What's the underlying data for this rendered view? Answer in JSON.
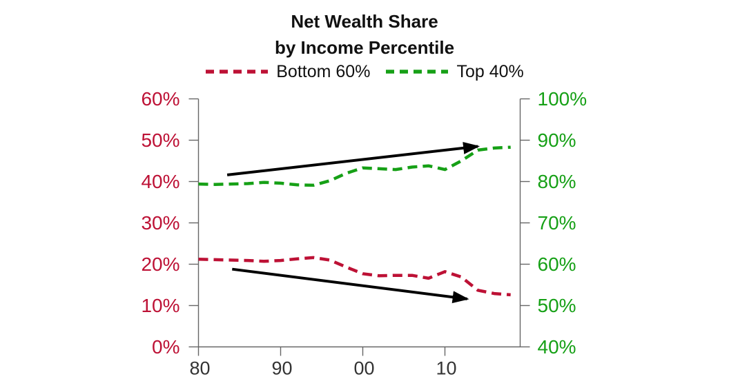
{
  "title": {
    "line1": "Net Wealth Share",
    "line2": "by Income Percentile"
  },
  "legend": {
    "items": [
      {
        "label": "Bottom 60%",
        "color": "#bd1135"
      },
      {
        "label": "Top 40%",
        "color": "#16a016"
      }
    ]
  },
  "chart_data": {
    "type": "line",
    "title": "Net Wealth Share by Income Percentile",
    "x_years": [
      1980,
      1982,
      1984,
      1986,
      1988,
      1990,
      1992,
      1994,
      1996,
      1998,
      2000,
      2002,
      2004,
      2006,
      2008,
      2010,
      2012,
      2014,
      2016,
      2018
    ],
    "series": [
      {
        "name": "Bottom 60%",
        "axis": "left",
        "color": "#bd1135",
        "style": "dashed",
        "values": [
          21.2,
          21.1,
          21.0,
          20.9,
          20.7,
          20.9,
          21.3,
          21.6,
          21.0,
          19.3,
          17.7,
          17.2,
          17.3,
          17.3,
          16.6,
          18.2,
          16.9,
          13.7,
          12.9,
          12.6
        ]
      },
      {
        "name": "Top 40%",
        "axis": "right",
        "color": "#16a016",
        "style": "dashed",
        "values": [
          79.4,
          79.3,
          79.4,
          79.5,
          79.8,
          79.6,
          79.2,
          79.1,
          80.2,
          82.0,
          83.3,
          83.1,
          82.9,
          83.5,
          83.8,
          82.9,
          85.0,
          87.6,
          88.1,
          88.3
        ]
      }
    ],
    "left_axis": {
      "color": "#bd1135",
      "range": [
        0,
        60
      ],
      "ticks": [
        60,
        50,
        40,
        30,
        20,
        10,
        0
      ],
      "labels": [
        "60%",
        "50%",
        "40%",
        "30%",
        "20%",
        "10%",
        "0%"
      ]
    },
    "right_axis": {
      "color": "#16a016",
      "range": [
        40,
        100
      ],
      "ticks": [
        100,
        90,
        80,
        70,
        60,
        50,
        40
      ],
      "labels": [
        "100%",
        "90%",
        "80%",
        "70%",
        "60%",
        "50%",
        "40%"
      ]
    },
    "x_axis": {
      "range": [
        1980,
        2019
      ],
      "tick_years": [
        1980,
        1990,
        2000,
        2010
      ],
      "tick_labels": [
        "80",
        "90",
        "00",
        "10"
      ],
      "color": "#333333"
    },
    "grid": false,
    "legend_position": "top",
    "annotations": [
      {
        "name": "top-trend-arrow",
        "axis": "right",
        "color": "#000000",
        "from": {
          "year": 1983.5,
          "value": 81.6
        },
        "to": {
          "year": 2014.0,
          "value": 88.5
        }
      },
      {
        "name": "bottom-trend-arrow",
        "axis": "left",
        "color": "#000000",
        "from": {
          "year": 1984.1,
          "value": 18.8
        },
        "to": {
          "year": 2012.7,
          "value": 11.6
        }
      }
    ]
  }
}
